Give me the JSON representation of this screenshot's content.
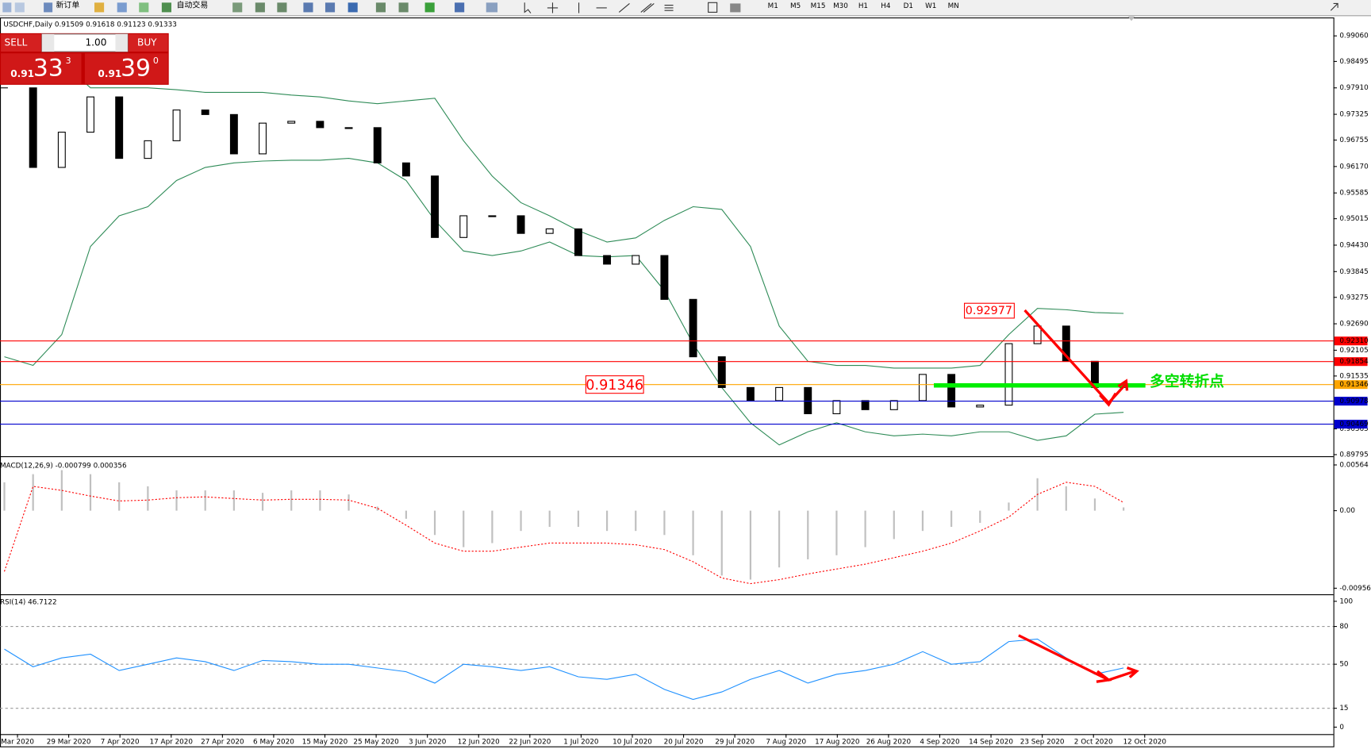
{
  "toolbar": {
    "new_order": "新订单",
    "auto_trading": "自动交易",
    "timeframes": [
      "M1",
      "M5",
      "M15",
      "M30",
      "H1",
      "H4",
      "D1",
      "W1",
      "MN"
    ]
  },
  "trade_panel": {
    "sell": "SELL",
    "buy": "BUY",
    "volume": "1.00",
    "sell_price": {
      "big": "0.91",
      "pips": "33",
      "point": "3"
    },
    "buy_price": {
      "big": "0.91",
      "pips": "39",
      "point": "0"
    }
  },
  "chart_data": [
    {
      "type": "candlestick",
      "title": "USDCHF,Daily  0.91509 0.91618 0.91123 0.91333",
      "close": [
        0.9791,
        0.9615,
        0.9693,
        0.9771,
        0.9635,
        0.9674,
        0.9742,
        0.9732,
        0.9645,
        0.9713,
        0.9717,
        0.9703,
        0.9703,
        0.9625,
        0.9596,
        0.946,
        0.9508,
        0.9508,
        0.9469,
        0.9479,
        0.942,
        0.9401,
        0.942,
        0.9323,
        0.9196,
        0.9128,
        0.9099,
        0.9128,
        0.907,
        0.9099,
        0.9079,
        0.9099,
        0.9157,
        0.9085,
        0.9089,
        0.9225,
        0.9264,
        0.9186,
        0.9128,
        0.9133
      ],
      "upper_band": [
        0.9869,
        0.9869,
        0.9849,
        0.9791,
        0.9791,
        0.9791,
        0.9787,
        0.9781,
        0.9781,
        0.9781,
        0.9775,
        0.9771,
        0.9762,
        0.9756,
        0.9762,
        0.9768,
        0.9674,
        0.9596,
        0.9537,
        0.9508,
        0.9475,
        0.945,
        0.9459,
        0.9498,
        0.9528,
        0.9522,
        0.944,
        0.9264,
        0.9186,
        0.9177,
        0.9177,
        0.9171,
        0.9171,
        0.9171,
        0.9177,
        0.9245,
        0.9303,
        0.93,
        0.9294,
        0.9292
      ],
      "lower_band": [
        0.9196,
        0.9177,
        0.9245,
        0.944,
        0.9508,
        0.9528,
        0.9586,
        0.9615,
        0.9625,
        0.9629,
        0.9631,
        0.9631,
        0.9635,
        0.9625,
        0.9586,
        0.9498,
        0.943,
        0.942,
        0.943,
        0.945,
        0.942,
        0.9417,
        0.942,
        0.9342,
        0.9225,
        0.9128,
        0.905,
        0.9001,
        0.903,
        0.905,
        0.903,
        0.9021,
        0.9025,
        0.9021,
        0.903,
        0.903,
        0.9011,
        0.9021,
        0.9069,
        0.9073
      ],
      "band_color": "#2e8b57",
      "ylim": [
        0.8976,
        0.9939
      ],
      "yticks": [
        {
          "value": 0.9906,
          "label": "0.99060"
        },
        0.98495,
        {
          "value": 0.9791,
          "label": "0.97910"
        },
        0.97325,
        0.96755,
        {
          "value": 0.9617,
          "label": "0.96170"
        },
        0.95585,
        0.95015,
        {
          "value": 0.9443,
          "label": "0.94430"
        },
        0.93845,
        0.93275,
        {
          "value": 0.9269,
          "label": "0.92690"
        },
        0.92105,
        0.91535,
        0.90365,
        0.89795
      ],
      "levels": [
        {
          "value": 0.9231,
          "label": "0.92310",
          "color": "#ff0000"
        },
        {
          "value": 0.91854,
          "label": "0.91854",
          "color": "#ff0000"
        },
        {
          "value": 0.91346,
          "label": "0.91346",
          "color": "#ffa500"
        },
        {
          "value": 0.90978,
          "label": "0.90978",
          "color": "#0000cd"
        },
        {
          "value": 0.90469,
          "label": "0.90469",
          "color": "#0000cd"
        }
      ],
      "annotations": [
        "0.92977",
        "0.91346",
        "多空转折点"
      ],
      "x_labels": [
        "Mar 2020",
        "29 Mar 2020",
        "7 Apr 2020",
        "17 Apr 2020",
        "27 Apr 2020",
        "6 May 2020",
        "15 May 2020",
        "25 May 2020",
        "3 Jun 2020",
        "12 Jun 2020",
        "22 Jun 2020",
        "1 Jul 2020",
        "10 Jul 2020",
        "20 Jul 2020",
        "29 Jul 2020",
        "7 Aug 2020",
        "17 Aug 2020",
        "26 Aug 2020",
        "4 Sep 2020",
        "14 Sep 2020",
        "23 Sep 2020",
        "2 Oct 2020",
        "12 Oct 2020"
      ]
    },
    {
      "type": "macd",
      "title": "MACD(12,26,9) -0.000799 0.000356",
      "histogram": [
        0.0035,
        0.0045,
        0.005,
        0.0045,
        0.0035,
        0.003,
        0.0025,
        0.0025,
        0.0025,
        0.0022,
        0.0025,
        0.0025,
        0.002,
        0.0005,
        -0.001,
        -0.003,
        -0.0045,
        -0.004,
        -0.0025,
        -0.002,
        -0.002,
        -0.0025,
        -0.0025,
        -0.003,
        -0.0055,
        -0.008,
        -0.0085,
        -0.007,
        -0.006,
        -0.0055,
        -0.0045,
        -0.0035,
        -0.0025,
        -0.002,
        -0.0015,
        0.001,
        0.004,
        0.003,
        0.0015,
        0.0004
      ],
      "signal": [
        -0.0075,
        0.003,
        0.0025,
        0.0018,
        0.0012,
        0.0013,
        0.0016,
        0.0017,
        0.0015,
        0.0013,
        0.0014,
        0.0014,
        0.0013,
        0.0003,
        -0.0018,
        -0.004,
        -0.005,
        -0.005,
        -0.0045,
        -0.004,
        -0.004,
        -0.004,
        -0.0042,
        -0.0048,
        -0.0063,
        -0.0083,
        -0.009,
        -0.0085,
        -0.0078,
        -0.0072,
        -0.0066,
        -0.0058,
        -0.005,
        -0.004,
        -0.0025,
        -0.0008,
        0.002,
        0.0035,
        0.003,
        0.001
      ],
      "histogram_color": "#c0c0c0",
      "signal_color": "#ff0000",
      "ylim": [
        -0.0101,
        0.0065
      ],
      "yticks": [
        {
          "value": 0.00564,
          "label": "0.00564"
        },
        {
          "value": 0,
          "label": "0.00"
        },
        -0.009565
      ]
    },
    {
      "type": "rsi",
      "title": "RSI(14) 46.7122",
      "values": [
        62,
        48,
        55,
        58,
        45,
        50,
        55,
        52,
        45,
        53,
        52,
        50,
        50,
        47,
        44,
        35,
        50,
        48,
        45,
        48,
        40,
        38,
        42,
        30,
        22,
        28,
        38,
        45,
        35,
        42,
        45,
        50,
        60,
        50,
        52,
        68,
        70,
        55,
        42,
        47
      ],
      "color": "#1e90ff",
      "ylim": [
        0,
        100
      ],
      "yticks": [
        100,
        80,
        50,
        15,
        0
      ]
    }
  ]
}
